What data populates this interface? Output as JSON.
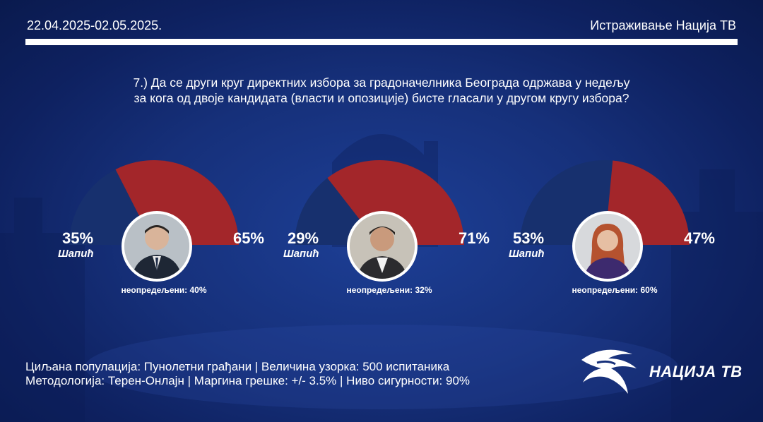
{
  "header": {
    "date_range": "22.04.2025-02.05.2025.",
    "source": "Истраживање Нација ТВ"
  },
  "question": {
    "line1": "7.) Да се други круг директних избора за градоначелника Београда одржава у недељу",
    "line2": "за кога од двоје кандидата (власти и опозиције) бисте гласали у другом кругу избора?"
  },
  "chart_data": [
    {
      "type": "pie",
      "series": [
        {
          "name": "Шапић",
          "value": 35,
          "label": "35%",
          "color": "#17306e"
        },
        {
          "name": "",
          "value": 65,
          "label": "65%",
          "color": "#a3262a"
        }
      ],
      "undecided_label": "неопредељени: 40%"
    },
    {
      "type": "pie",
      "series": [
        {
          "name": "Шапић",
          "value": 29,
          "label": "29%",
          "color": "#17306e"
        },
        {
          "name": "",
          "value": 71,
          "label": "71%",
          "color": "#a3262a"
        }
      ],
      "undecided_label": "неопредељени: 32%"
    },
    {
      "type": "pie",
      "series": [
        {
          "name": "Шапић",
          "value": 53,
          "label": "53%",
          "color": "#17306e"
        },
        {
          "name": "",
          "value": 47,
          "label": "47%",
          "color": "#a3262a"
        }
      ],
      "undecided_label": "неопредељени: 60%"
    }
  ],
  "footer": {
    "line1": "Циљана популација: Пунолетни грађани | Величина узорка: 500 испитаника",
    "line2": "Методологија: Терен-Онлајн | Маргина грешке: +/- 3.5% | Ниво сигурности: 90%"
  },
  "logo": {
    "text": "НАЦИЈА ТВ",
    "icon": "eagle-icon"
  },
  "colors": {
    "government": "#17306e",
    "opposition": "#a3262a",
    "background": "#16307a"
  }
}
